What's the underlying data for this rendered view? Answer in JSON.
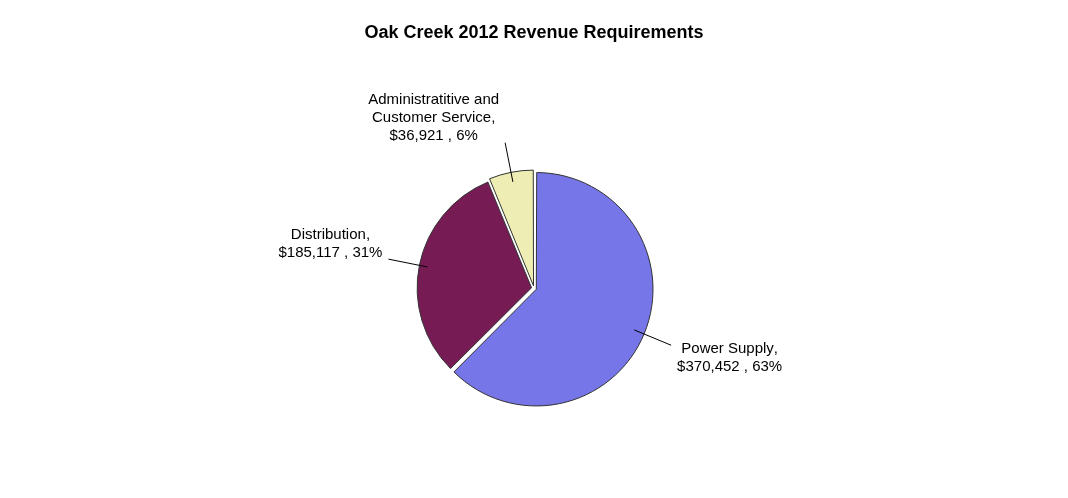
{
  "chart_data": {
    "type": "pie",
    "title": "Oak Creek 2012 Revenue Requirements",
    "categories": [
      "Power Supply",
      "Distribution",
      "Administratitive and Customer Service"
    ],
    "values": [
      370452,
      185117,
      36921
    ],
    "colors": [
      "#7676e8",
      "#771b55",
      "#eeeeb4"
    ],
    "value_labels": [
      ", $370,452 , 63%",
      ", $185,117 , 31%",
      ", $36,921 , 6%"
    ],
    "legend": false
  }
}
